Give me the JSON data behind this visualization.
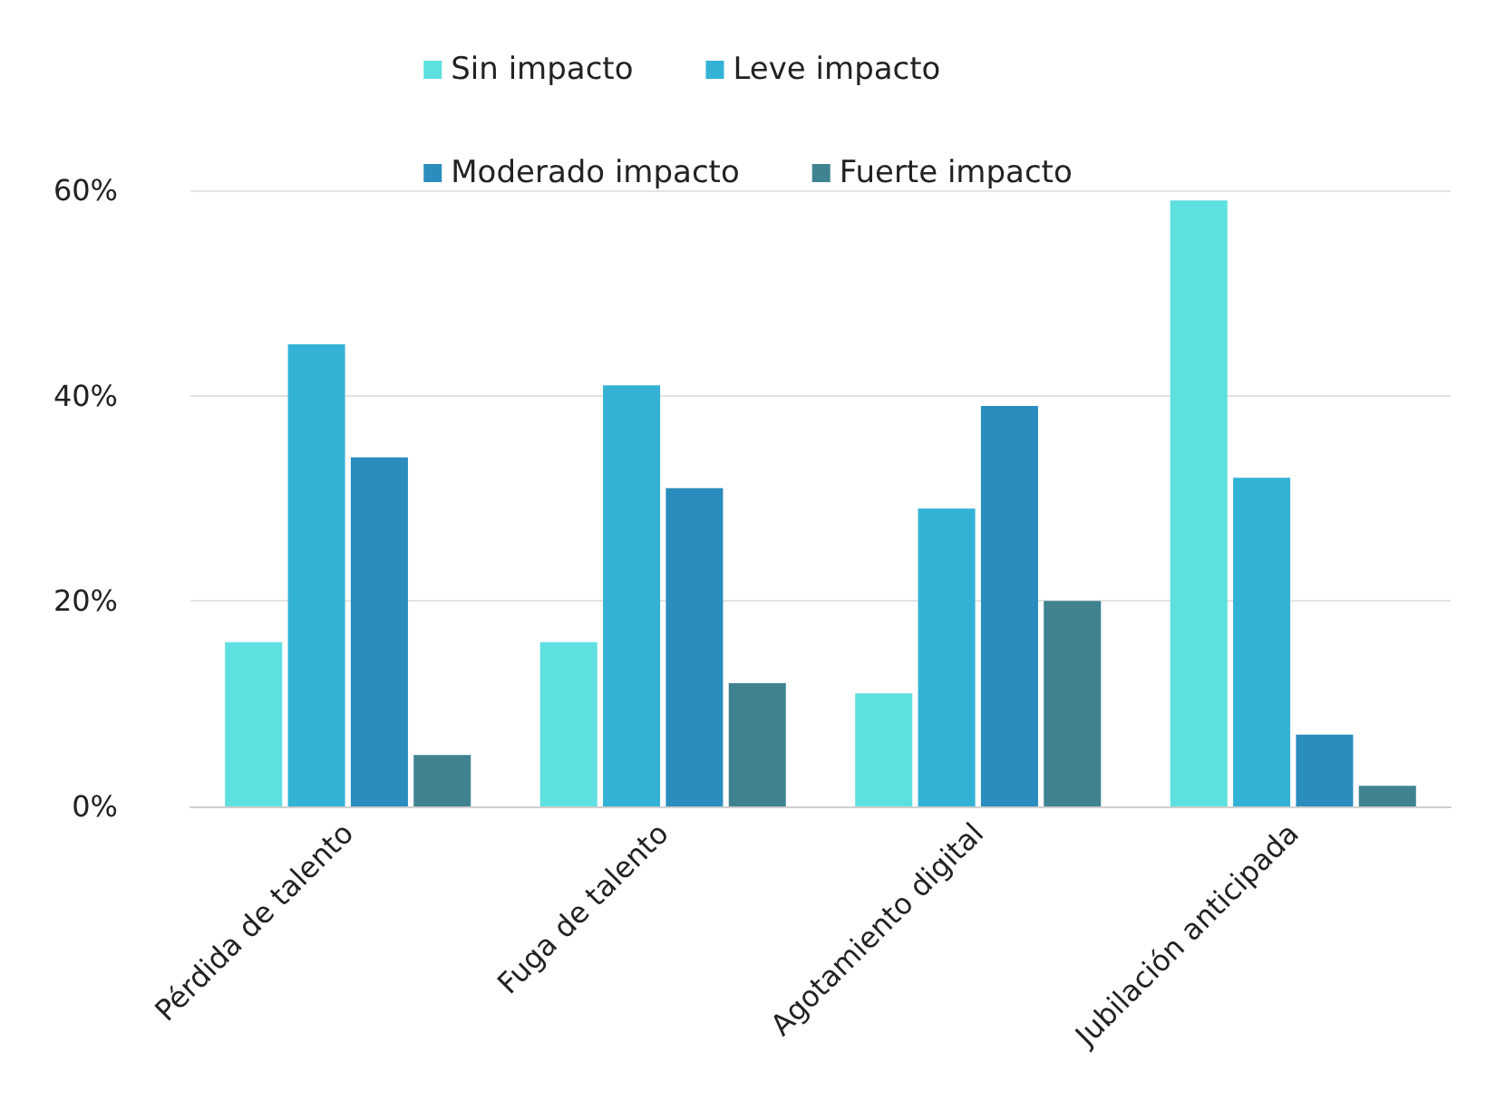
{
  "chart_data": {
    "type": "bar",
    "categories": [
      "Pérdida de talento",
      "Fuga de talento",
      "Agotamiento digital",
      "Jubilación anticipada"
    ],
    "series": [
      {
        "name": "Sin impacto",
        "color": "#5ee0e0",
        "values": [
          16,
          16,
          11,
          59
        ]
      },
      {
        "name": "Leve impacto",
        "color": "#33b2d6",
        "values": [
          45,
          41,
          29,
          32
        ]
      },
      {
        "name": "Moderado impacto",
        "color": "#2a8dbe",
        "values": [
          34,
          31,
          39,
          7
        ]
      },
      {
        "name": "Fuerte impacto",
        "color": "#3f8391",
        "values": [
          5,
          12,
          20,
          2
        ]
      }
    ],
    "ylim": [
      0,
      60
    ],
    "yticks": [
      {
        "value": 0,
        "label": "0%"
      },
      {
        "value": 20,
        "label": "20%"
      },
      {
        "value": 40,
        "label": "40%"
      },
      {
        "value": 60,
        "label": "60%"
      }
    ],
    "grid": "y",
    "legend": "top"
  }
}
